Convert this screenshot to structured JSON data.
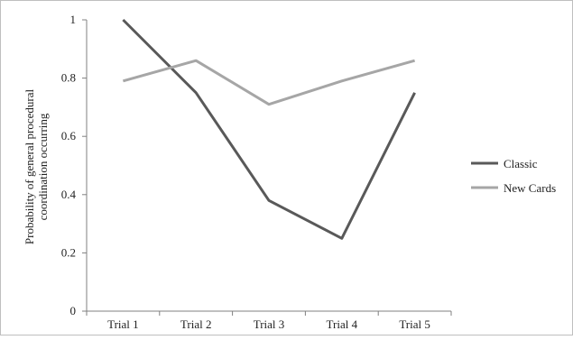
{
  "chart_data": {
    "type": "line",
    "title": "",
    "xlabel": "",
    "ylabel_lines": [
      "Probability of general procedural",
      "coordination occurring"
    ],
    "categories": [
      "Trial 1",
      "Trial 2",
      "Trial 3",
      "Trial 4",
      "Trial 5"
    ],
    "ylim": [
      0,
      1
    ],
    "yticks": [
      0,
      0.2,
      0.4,
      0.6,
      0.8,
      1
    ],
    "ytick_labels": [
      "0",
      "0.2",
      "0.4",
      "0.6",
      "0.8",
      "1"
    ],
    "grid": false,
    "legend_position": "right",
    "series": [
      {
        "name": "Classic",
        "color": "#595959",
        "values": [
          1.0,
          0.75,
          0.38,
          0.25,
          0.75
        ]
      },
      {
        "name": "New Cards",
        "color": "#a6a6a6",
        "values": [
          0.79,
          0.86,
          0.71,
          0.79,
          0.86
        ]
      }
    ]
  }
}
